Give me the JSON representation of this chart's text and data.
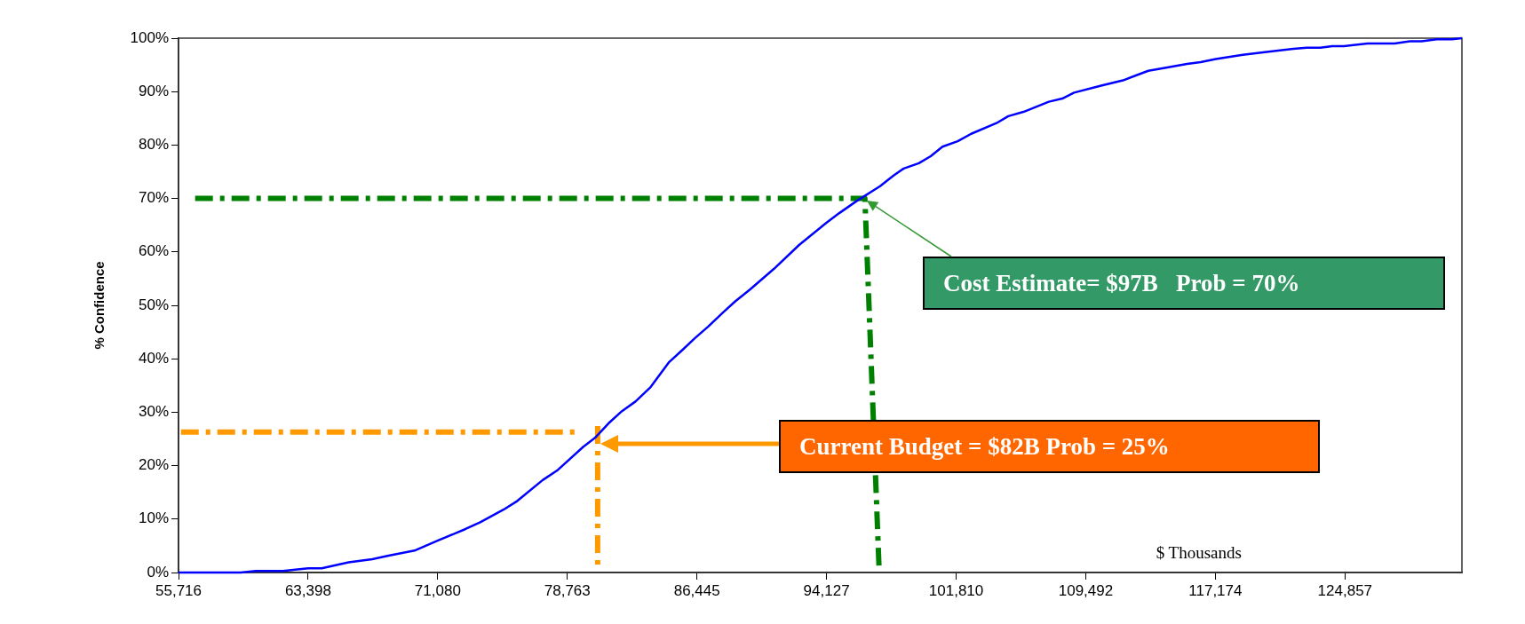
{
  "chart_data": {
    "type": "line",
    "xlabel": "$ Thousands",
    "ylabel": "% Confidence",
    "xlim": [
      55716,
      131790
    ],
    "ylim": [
      0,
      100
    ],
    "xticks": [
      {
        "value": 55716,
        "label": "55,716"
      },
      {
        "value": 63398,
        "label": "63,398"
      },
      {
        "value": 71080,
        "label": "71,080"
      },
      {
        "value": 78763,
        "label": "78,763"
      },
      {
        "value": 86445,
        "label": "86,445"
      },
      {
        "value": 94127,
        "label": "94,127"
      },
      {
        "value": 101810,
        "label": "101,810"
      },
      {
        "value": 109492,
        "label": "109,492"
      },
      {
        "value": 117174,
        "label": "117,174"
      },
      {
        "value": 124857,
        "label": "124,857"
      }
    ],
    "yticks": [
      {
        "value": 0,
        "label": "0%"
      },
      {
        "value": 10,
        "label": "10%"
      },
      {
        "value": 20,
        "label": "20%"
      },
      {
        "value": 30,
        "label": "30%"
      },
      {
        "value": 40,
        "label": "40%"
      },
      {
        "value": 50,
        "label": "50%"
      },
      {
        "value": 60,
        "label": "60%"
      },
      {
        "value": 70,
        "label": "70%"
      },
      {
        "value": 80,
        "label": "80%"
      },
      {
        "value": 90,
        "label": "90%"
      },
      {
        "value": 100,
        "label": "100%"
      }
    ],
    "grid": false,
    "legend": false,
    "marker": "none",
    "series": [
      {
        "color": "#0000ff",
        "line_style": "solid",
        "x": [
          55716,
          59400,
          60300,
          61900,
          63400,
          64200,
          65800,
          67200,
          68100,
          69700,
          71100,
          72700,
          73600,
          75000,
          75800,
          77300,
          78200,
          79700,
          80400,
          81200,
          82000,
          82800,
          83700,
          84800,
          85600,
          86300,
          87100,
          88000,
          88700,
          89600,
          91000,
          92500,
          94100,
          94900,
          95900,
          97300,
          98100,
          98700,
          99600,
          100300,
          101000,
          101900,
          102700,
          104200,
          104900,
          105800,
          107300,
          108100,
          108800,
          110400,
          111700,
          113200,
          114100,
          115500,
          116300,
          117200,
          118800,
          120100,
          121800,
          122600,
          123400,
          124100,
          124800,
          126200,
          127800,
          128700,
          129400,
          130300,
          131200,
          131790
        ],
        "values": [
          0,
          0,
          0.3,
          0.3,
          0.8,
          0.8,
          1.9,
          2.5,
          3.1,
          4.1,
          6.0,
          8.1,
          9.4,
          11.8,
          13.4,
          17.3,
          19.2,
          23.5,
          25.2,
          27.9,
          30.2,
          32.0,
          34.7,
          39.4,
          41.7,
          43.8,
          46.0,
          48.7,
          50.7,
          53.0,
          56.8,
          61.3,
          65.4,
          67.3,
          69.5,
          72.3,
          74.3,
          75.6,
          76.6,
          77.9,
          79.7,
          80.7,
          82.1,
          84.1,
          85.4,
          86.2,
          88.1,
          88.7,
          89.8,
          91.1,
          92.1,
          93.9,
          94.4,
          95.2,
          95.5,
          96.1,
          96.9,
          97.4,
          98.0,
          98.2,
          98.2,
          98.5,
          98.5,
          99.0,
          99.0,
          99.4,
          99.4,
          99.8,
          99.8,
          100
        ]
      },
      {
        "color": "#008000",
        "line_style": "dashed",
        "x": [
          56700,
          96400,
          97250
        ],
        "values": [
          70,
          70,
          0
        ]
      },
      {
        "color": "#ff9900",
        "line_style": "dashed",
        "x": [
          55860,
          79450
        ],
        "values": [
          26.3,
          26.3
        ]
      },
      {
        "color": "#ff9900",
        "line_style": "dashed",
        "x": [
          80560,
          80560
        ],
        "values": [
          27.4,
          1.5
        ]
      }
    ],
    "annotations": [
      "Cost Estimate= $97B   Prob = 70%",
      "Current Budget = $82B Prob = 25%"
    ]
  }
}
